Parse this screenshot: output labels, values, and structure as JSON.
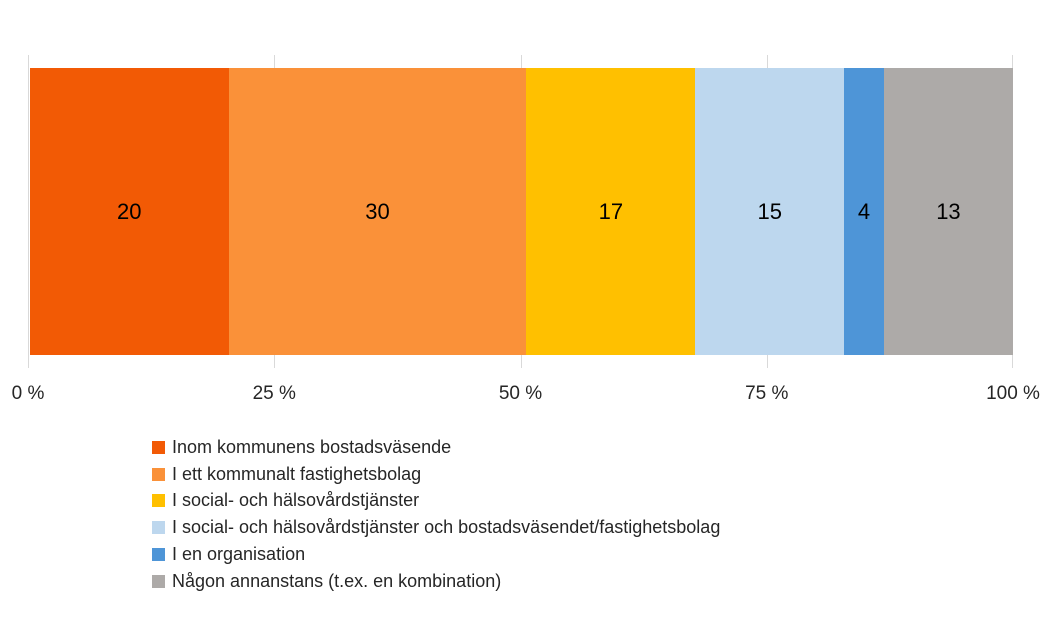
{
  "chart_data": {
    "type": "bar",
    "orientation": "horizontal",
    "stacked": true,
    "title": "",
    "categories": [
      ""
    ],
    "series": [
      {
        "name": "Inom kommunens bostadsväsende",
        "value": 20,
        "color": "#F25A05"
      },
      {
        "name": "I ett kommunalt fastighetsbolag",
        "value": 30,
        "color": "#FA9139"
      },
      {
        "name": "I social- och hälsovårdstjänster",
        "value": 17,
        "color": "#FFC000"
      },
      {
        "name": "I social- och hälsovårdstjänster och bostadsväsendet/fastighetsbolag",
        "value": 15,
        "color": "#BDD7EE"
      },
      {
        "name": "I en organisation",
        "value": 4,
        "color": "#4E95D7"
      },
      {
        "name": "Någon annanstans (t.ex. en kombination)",
        "value": 13,
        "color": "#ADAAA8"
      }
    ],
    "x_axis": {
      "ticks": [
        "0 %",
        "25 %",
        "50 %",
        "75 %",
        "100 %"
      ],
      "range": [
        0,
        100
      ],
      "gridlines": true,
      "gridline_color": "#D9D9D9"
    },
    "value_labels_shown": true,
    "value_label_color": "#000000",
    "axis_label_color": "#262626",
    "legend_position": "bottom-left"
  }
}
